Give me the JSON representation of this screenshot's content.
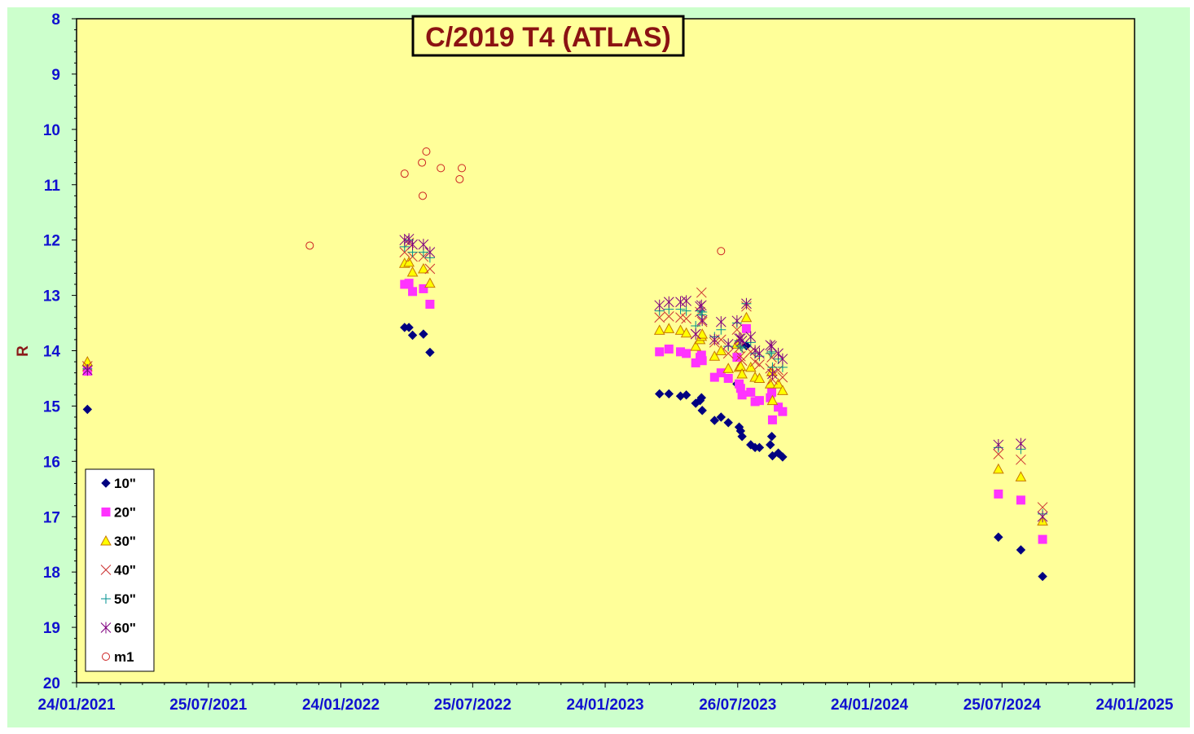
{
  "chart_data": {
    "type": "scatter",
    "title": "C/2019 T4 (ATLAS)",
    "ylabel": "R",
    "xlabel": "",
    "ylim": [
      8,
      20
    ],
    "y_inverted": true,
    "y_ticks": [
      "8",
      "9",
      "10",
      "11",
      "12",
      "13",
      "14",
      "15",
      "16",
      "17",
      "18",
      "19",
      "20"
    ],
    "xlim": [
      "2021-01-24",
      "2025-01-24"
    ],
    "x_tick_dates": [
      "2021-01-24",
      "2021-07-25",
      "2022-01-24",
      "2022-07-25",
      "2023-01-24",
      "2023-07-26",
      "2024-01-24",
      "2024-07-25",
      "2025-01-24"
    ],
    "x_tick_labels": [
      "24/01/2021",
      "25/07/2021",
      "24/01/2022",
      "25/07/2022",
      "24/01/2023",
      "26/07/2023",
      "24/01/2024",
      "25/07/2024",
      "24/01/2025"
    ],
    "grid": false,
    "legend_position": "bottom-left",
    "colors": {
      "page_background": "#ccffcc",
      "plot_background": "#ffff99",
      "axis": "#000000",
      "tick_label": "#1010d0",
      "title": "#8b1212"
    },
    "series": [
      {
        "name": "10\"",
        "marker": "diamond",
        "color": "#000080",
        "stroke": "#000080",
        "points": [
          [
            "2021-02-08",
            15.06
          ],
          [
            "2022-04-22",
            13.58
          ],
          [
            "2022-04-28",
            13.58
          ],
          [
            "2022-05-03",
            13.72
          ],
          [
            "2022-05-18",
            13.7
          ],
          [
            "2022-05-27",
            14.03
          ],
          [
            "2023-04-09",
            14.78
          ],
          [
            "2023-04-22",
            14.78
          ],
          [
            "2023-05-08",
            14.82
          ],
          [
            "2023-05-16",
            14.8
          ],
          [
            "2023-05-29",
            14.95
          ],
          [
            "2023-06-04",
            14.9
          ],
          [
            "2023-06-06",
            14.85
          ],
          [
            "2023-06-07",
            15.08
          ],
          [
            "2023-06-24",
            15.26
          ],
          [
            "2023-07-03",
            15.2
          ],
          [
            "2023-07-13",
            15.3
          ],
          [
            "2023-07-25",
            14.6
          ],
          [
            "2023-07-28",
            15.38
          ],
          [
            "2023-07-30",
            15.45
          ],
          [
            "2023-08-01",
            15.55
          ],
          [
            "2023-08-07",
            13.91
          ],
          [
            "2023-08-13",
            15.7
          ],
          [
            "2023-08-19",
            15.75
          ],
          [
            "2023-08-25",
            15.75
          ],
          [
            "2023-09-09",
            15.7
          ],
          [
            "2023-09-11",
            15.55
          ],
          [
            "2023-09-12",
            15.9
          ],
          [
            "2023-09-20",
            15.85
          ],
          [
            "2023-09-26",
            15.92
          ],
          [
            "2024-07-20",
            17.37
          ],
          [
            "2024-08-20",
            17.6
          ],
          [
            "2024-09-19",
            18.08
          ]
        ]
      },
      {
        "name": "20\"",
        "marker": "square",
        "color": "#ff33ff",
        "stroke": "#ff33ff",
        "points": [
          [
            "2021-02-08",
            14.37
          ],
          [
            "2022-04-22",
            12.8
          ],
          [
            "2022-04-28",
            12.78
          ],
          [
            "2022-05-03",
            12.93
          ],
          [
            "2022-05-18",
            12.88
          ],
          [
            "2022-05-27",
            13.16
          ],
          [
            "2023-04-09",
            14.02
          ],
          [
            "2023-04-22",
            13.97
          ],
          [
            "2023-05-08",
            14.02
          ],
          [
            "2023-05-16",
            14.05
          ],
          [
            "2023-05-29",
            14.22
          ],
          [
            "2023-06-04",
            14.12
          ],
          [
            "2023-06-06",
            14.08
          ],
          [
            "2023-06-07",
            14.18
          ],
          [
            "2023-06-24",
            14.48
          ],
          [
            "2023-07-03",
            14.4
          ],
          [
            "2023-07-13",
            14.5
          ],
          [
            "2023-07-25",
            14.12
          ],
          [
            "2023-07-28",
            14.6
          ],
          [
            "2023-07-30",
            14.68
          ],
          [
            "2023-08-01",
            14.8
          ],
          [
            "2023-08-07",
            13.6
          ],
          [
            "2023-08-13",
            14.75
          ],
          [
            "2023-08-19",
            14.92
          ],
          [
            "2023-08-25",
            14.9
          ],
          [
            "2023-09-09",
            14.85
          ],
          [
            "2023-09-11",
            14.75
          ],
          [
            "2023-09-12",
            15.25
          ],
          [
            "2023-09-20",
            15.02
          ],
          [
            "2023-09-26",
            15.1
          ],
          [
            "2024-07-20",
            16.59
          ],
          [
            "2024-08-20",
            16.7
          ],
          [
            "2024-09-19",
            17.41
          ]
        ]
      },
      {
        "name": "30\"",
        "marker": "triangle",
        "color": "#ffff00",
        "stroke": "#c87800",
        "points": [
          [
            "2021-02-08",
            14.2
          ],
          [
            "2022-04-22",
            12.42
          ],
          [
            "2022-04-28",
            12.4
          ],
          [
            "2022-05-03",
            12.58
          ],
          [
            "2022-05-18",
            12.52
          ],
          [
            "2022-05-27",
            12.78
          ],
          [
            "2023-04-09",
            13.63
          ],
          [
            "2023-04-22",
            13.6
          ],
          [
            "2023-05-08",
            13.63
          ],
          [
            "2023-05-16",
            13.68
          ],
          [
            "2023-05-29",
            13.92
          ],
          [
            "2023-06-04",
            13.8
          ],
          [
            "2023-06-06",
            13.74
          ],
          [
            "2023-06-07",
            13.7
          ],
          [
            "2023-06-24",
            14.1
          ],
          [
            "2023-07-03",
            14.0
          ],
          [
            "2023-07-13",
            14.32
          ],
          [
            "2023-07-25",
            13.88
          ],
          [
            "2023-07-28",
            14.3
          ],
          [
            "2023-07-30",
            14.28
          ],
          [
            "2023-08-01",
            14.42
          ],
          [
            "2023-08-07",
            13.4
          ],
          [
            "2023-08-13",
            14.3
          ],
          [
            "2023-08-19",
            14.48
          ],
          [
            "2023-08-25",
            14.5
          ],
          [
            "2023-09-09",
            14.6
          ],
          [
            "2023-09-11",
            14.38
          ],
          [
            "2023-09-12",
            14.9
          ],
          [
            "2023-09-20",
            14.6
          ],
          [
            "2023-09-26",
            14.72
          ],
          [
            "2024-07-20",
            16.14
          ],
          [
            "2024-08-20",
            16.28
          ],
          [
            "2024-09-19",
            17.08
          ]
        ]
      },
      {
        "name": "40\"",
        "marker": "x",
        "color": "#cc3333",
        "stroke": "#cc3333",
        "points": [
          [
            "2021-02-08",
            14.28
          ],
          [
            "2022-04-22",
            12.22
          ],
          [
            "2022-04-28",
            12.05
          ],
          [
            "2022-05-03",
            12.3
          ],
          [
            "2022-05-18",
            12.3
          ],
          [
            "2022-05-27",
            12.52
          ],
          [
            "2023-04-09",
            13.4
          ],
          [
            "2023-04-22",
            13.38
          ],
          [
            "2023-05-08",
            13.4
          ],
          [
            "2023-05-16",
            13.42
          ],
          [
            "2023-05-29",
            13.7
          ],
          [
            "2023-06-04",
            13.3
          ],
          [
            "2023-06-06",
            12.95
          ],
          [
            "2023-06-07",
            13.48
          ],
          [
            "2023-06-24",
            13.85
          ],
          [
            "2023-07-03",
            13.8
          ],
          [
            "2023-07-13",
            14.05
          ],
          [
            "2023-07-25",
            13.62
          ],
          [
            "2023-07-28",
            13.95
          ],
          [
            "2023-07-30",
            14.1
          ],
          [
            "2023-08-01",
            14.18
          ],
          [
            "2023-08-07",
            13.2
          ],
          [
            "2023-08-13",
            14.02
          ],
          [
            "2023-08-19",
            14.2
          ],
          [
            "2023-08-25",
            14.25
          ],
          [
            "2023-09-09",
            14.32
          ],
          [
            "2023-09-11",
            14.12
          ],
          [
            "2023-09-12",
            14.52
          ],
          [
            "2023-09-20",
            14.35
          ],
          [
            "2023-09-26",
            14.48
          ],
          [
            "2024-07-20",
            15.87
          ],
          [
            "2024-08-20",
            15.97
          ],
          [
            "2024-09-19",
            16.83
          ]
        ]
      },
      {
        "name": "50\"",
        "marker": "plus",
        "color": "#009090",
        "stroke": "#009090",
        "points": [
          [
            "2021-02-08",
            14.33
          ],
          [
            "2022-04-22",
            12.12
          ],
          [
            "2022-04-28",
            12.0
          ],
          [
            "2022-05-03",
            12.22
          ],
          [
            "2022-05-18",
            12.22
          ],
          [
            "2022-05-27",
            12.32
          ],
          [
            "2023-04-09",
            13.28
          ],
          [
            "2023-04-22",
            13.25
          ],
          [
            "2023-05-08",
            13.25
          ],
          [
            "2023-05-16",
            13.28
          ],
          [
            "2023-05-29",
            13.55
          ],
          [
            "2023-06-04",
            13.28
          ],
          [
            "2023-06-06",
            13.35
          ],
          [
            "2023-06-07",
            13.3
          ],
          [
            "2023-06-24",
            13.75
          ],
          [
            "2023-07-03",
            13.62
          ],
          [
            "2023-07-13",
            13.92
          ],
          [
            "2023-07-25",
            13.5
          ],
          [
            "2023-07-28",
            13.82
          ],
          [
            "2023-07-30",
            13.92
          ],
          [
            "2023-08-01",
            13.95
          ],
          [
            "2023-08-07",
            13.15
          ],
          [
            "2023-08-13",
            13.85
          ],
          [
            "2023-08-19",
            14.05
          ],
          [
            "2023-08-25",
            14.1
          ],
          [
            "2023-09-09",
            14.05
          ],
          [
            "2023-09-11",
            14.02
          ],
          [
            "2023-09-12",
            14.3
          ],
          [
            "2023-09-20",
            14.15
          ],
          [
            "2023-09-26",
            14.3
          ],
          [
            "2024-07-20",
            15.75
          ],
          [
            "2024-08-20",
            15.78
          ],
          [
            "2024-09-19",
            16.95
          ]
        ]
      },
      {
        "name": "60\"",
        "marker": "asterisk",
        "color": "#800080",
        "stroke": "#800080",
        "points": [
          [
            "2021-02-08",
            14.35
          ],
          [
            "2022-04-22",
            12.0
          ],
          [
            "2022-04-28",
            11.98
          ],
          [
            "2022-05-03",
            12.08
          ],
          [
            "2022-05-18",
            12.08
          ],
          [
            "2022-05-27",
            12.22
          ],
          [
            "2023-04-09",
            13.18
          ],
          [
            "2023-04-22",
            13.12
          ],
          [
            "2023-05-08",
            13.12
          ],
          [
            "2023-05-16",
            13.1
          ],
          [
            "2023-05-29",
            13.7
          ],
          [
            "2023-06-04",
            13.2
          ],
          [
            "2023-06-06",
            13.18
          ],
          [
            "2023-06-07",
            13.45
          ],
          [
            "2023-06-24",
            13.8
          ],
          [
            "2023-07-03",
            13.48
          ],
          [
            "2023-07-13",
            13.88
          ],
          [
            "2023-07-25",
            13.46
          ],
          [
            "2023-07-28",
            13.78
          ],
          [
            "2023-07-30",
            13.78
          ],
          [
            "2023-08-01",
            13.82
          ],
          [
            "2023-08-07",
            13.15
          ],
          [
            "2023-08-13",
            13.75
          ],
          [
            "2023-08-19",
            14.0
          ],
          [
            "2023-08-25",
            14.05
          ],
          [
            "2023-09-09",
            13.9
          ],
          [
            "2023-09-11",
            13.92
          ],
          [
            "2023-09-12",
            14.42
          ],
          [
            "2023-09-20",
            14.05
          ],
          [
            "2023-09-26",
            14.15
          ],
          [
            "2024-07-20",
            15.7
          ],
          [
            "2024-08-20",
            15.68
          ],
          [
            "2024-09-19",
            17.0
          ]
        ]
      },
      {
        "name": "m1",
        "marker": "circle",
        "color": "none",
        "stroke": "#cc2222",
        "points": [
          [
            "2021-12-12",
            12.1
          ],
          [
            "2022-04-22",
            10.8
          ],
          [
            "2022-05-16",
            10.6
          ],
          [
            "2022-05-17",
            11.2
          ],
          [
            "2022-05-22",
            10.4
          ],
          [
            "2022-06-11",
            10.7
          ],
          [
            "2022-07-07",
            10.9
          ],
          [
            "2022-07-10",
            10.7
          ],
          [
            "2023-07-03",
            12.2
          ]
        ]
      }
    ]
  }
}
